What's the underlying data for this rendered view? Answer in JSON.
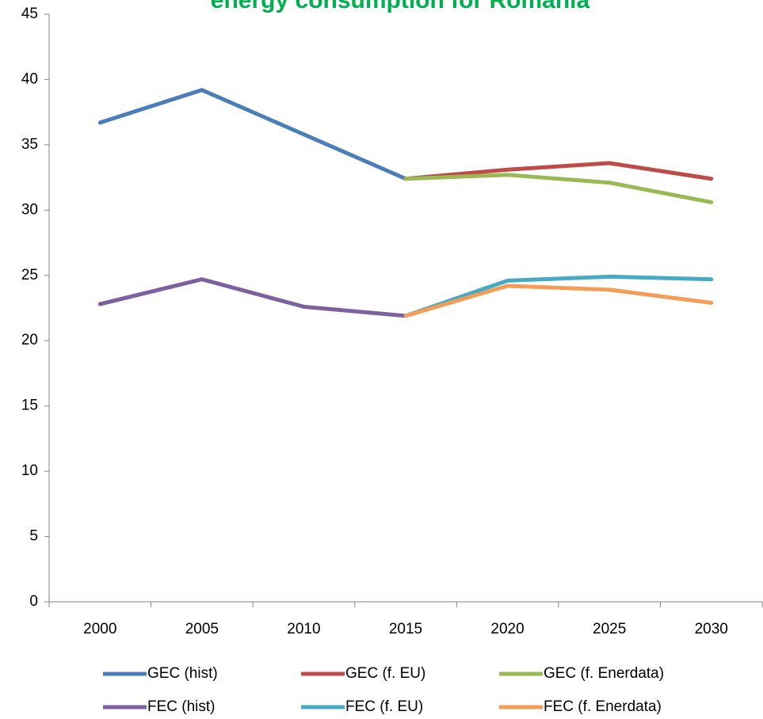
{
  "chart_data": {
    "type": "line",
    "title": "energy consumption for Romania",
    "categories": [
      "2000",
      "2005",
      "2010",
      "2015",
      "2020",
      "2025",
      "2030"
    ],
    "series": [
      {
        "name": "GEC (hist)",
        "color": "#4a7ebb",
        "values": [
          36.7,
          39.2,
          35.8,
          32.4,
          null,
          null,
          null
        ]
      },
      {
        "name": "GEC (f. EU)",
        "color": "#be4b48",
        "values": [
          null,
          null,
          null,
          32.4,
          33.1,
          33.6,
          32.4
        ]
      },
      {
        "name": "GEC (f. Enerdata)",
        "color": "#98b954",
        "values": [
          null,
          null,
          null,
          32.4,
          32.7,
          32.1,
          30.6
        ]
      },
      {
        "name": "FEC (hist)",
        "color": "#7d60a0",
        "values": [
          22.8,
          24.7,
          22.6,
          21.9,
          null,
          null,
          null
        ]
      },
      {
        "name": "FEC (f. EU)",
        "color": "#46aac5",
        "values": [
          null,
          null,
          null,
          21.9,
          24.6,
          24.9,
          24.7
        ]
      },
      {
        "name": "FEC (f. Enerdata)",
        "color": "#f59d56",
        "values": [
          null,
          null,
          null,
          21.9,
          24.2,
          23.9,
          22.9
        ]
      }
    ],
    "ylim": [
      0,
      45
    ],
    "yticks": [
      0,
      5,
      10,
      15,
      20,
      25,
      30,
      35,
      40,
      45
    ],
    "legend": "bottom"
  }
}
